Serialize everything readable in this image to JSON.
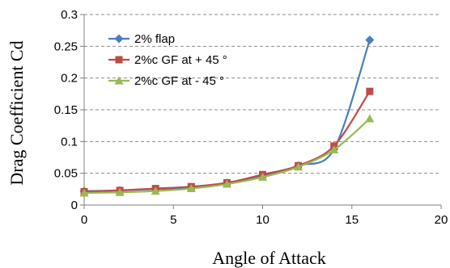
{
  "chart_data": {
    "type": "line",
    "xlabel": "Angle  of Attack",
    "ylabel": "Drag  Coefficient  Cd",
    "xlim": [
      0,
      20
    ],
    "ylim": [
      0,
      0.3
    ],
    "xticks": [
      0,
      5,
      10,
      15,
      20
    ],
    "yticks": [
      0,
      0.05,
      0.1,
      0.15,
      0.2,
      0.25,
      0.3
    ],
    "xtick_labels": [
      "0",
      "5",
      "10",
      "15",
      "20"
    ],
    "ytick_labels": [
      "0",
      "0.05",
      "0.1",
      "0.15",
      "0.2",
      "0.25",
      "0.3"
    ],
    "grid": "horizontal-dashed",
    "legend_position": "top-left",
    "x": [
      0,
      2,
      4,
      6,
      8,
      10,
      12,
      14,
      16
    ],
    "series": [
      {
        "name": "2% flap",
        "marker": "diamond",
        "color": "#4a7ebb",
        "values": [
          0.022,
          0.023,
          0.025,
          0.028,
          0.035,
          0.046,
          0.062,
          0.088,
          0.26
        ]
      },
      {
        "name": "2%c GF at + 45 °",
        "marker": "square",
        "color": "#be4b48",
        "values": [
          0.021,
          0.023,
          0.026,
          0.029,
          0.035,
          0.048,
          0.062,
          0.093,
          0.179
        ]
      },
      {
        "name": "2%c GF at - 45 °",
        "marker": "triangle",
        "color": "#98b954",
        "values": [
          0.019,
          0.02,
          0.022,
          0.026,
          0.033,
          0.044,
          0.06,
          0.087,
          0.136
        ]
      }
    ]
  }
}
